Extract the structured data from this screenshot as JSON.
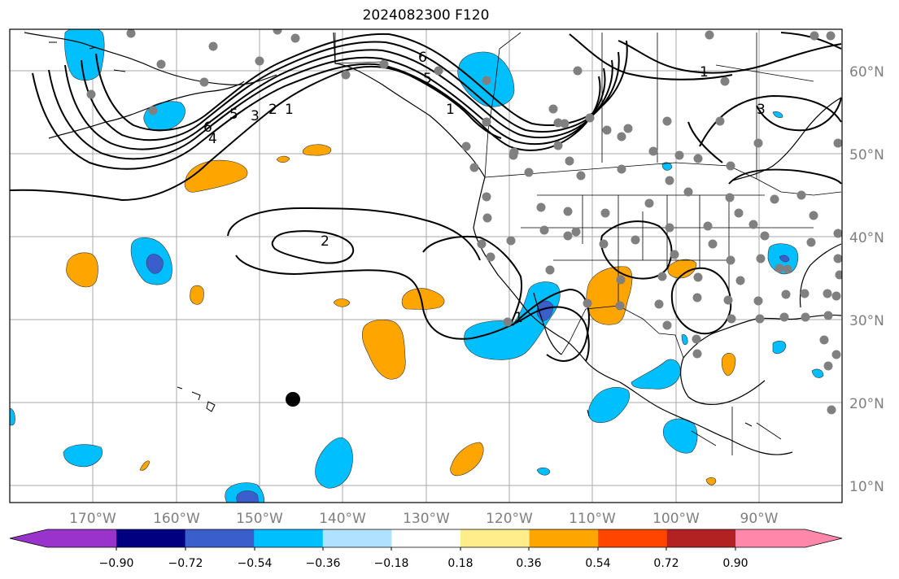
{
  "title": "2024082300 F120",
  "lon_labels": [
    "170°W",
    "160°W",
    "150°W",
    "140°W",
    "130°W",
    "120°W",
    "110°W",
    "100°W",
    "90°W"
  ],
  "lat_labels": [
    "60°N",
    "50°N",
    "40°N",
    "30°N",
    "20°N",
    "10°N"
  ],
  "colorbar": {
    "ticks": [
      "−0.90",
      "−0.72",
      "−0.54",
      "−0.36",
      "−0.18",
      "0.18",
      "0.36",
      "0.54",
      "0.72",
      "0.90"
    ],
    "colors": [
      "#9933cc",
      "#000080",
      "#3a5fcd",
      "#00bfff",
      "#b0e2ff",
      "#ffffff",
      "#ffec8b",
      "#ffa500",
      "#ff4500",
      "#b22222",
      "#ff88aa"
    ]
  },
  "contour_labels": [
    "6",
    "5",
    "4",
    "3",
    "2",
    "1",
    "6",
    "5",
    "2",
    "1",
    "3",
    "1",
    "1"
  ],
  "colors": {
    "orange": "#ffa500",
    "light_blue": "#00bfff",
    "dark_blue": "#3a5fcd",
    "station_gray": "#808080"
  }
}
